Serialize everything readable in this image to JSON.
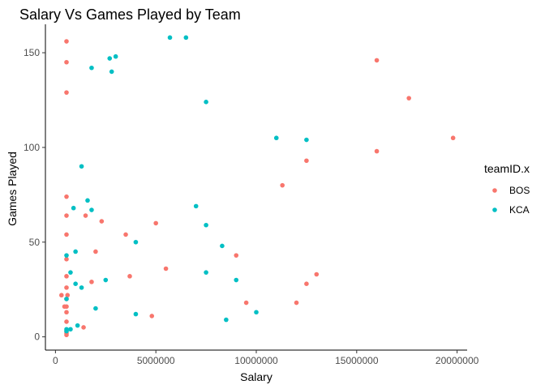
{
  "chart_data": {
    "type": "scatter",
    "title": "Salary Vs Games Played by Team",
    "xlabel": "Salary",
    "ylabel": "Games Played",
    "xlim": [
      -500000,
      20500000
    ],
    "ylim": [
      -7,
      165
    ],
    "x_ticks": [
      0,
      5000000,
      10000000,
      15000000,
      20000000
    ],
    "x_tick_labels": [
      "0",
      "5000000",
      "10000000",
      "15000000",
      "20000000"
    ],
    "y_ticks": [
      0,
      50,
      100,
      150
    ],
    "y_tick_labels": [
      "0",
      "50",
      "100",
      "150"
    ],
    "grid": false,
    "legend": {
      "title": "teamID.x",
      "placement": "right"
    },
    "series": [
      {
        "name": "BOS",
        "color": "#F8766D",
        "points": [
          [
            550000,
            156
          ],
          [
            550000,
            145
          ],
          [
            550000,
            129
          ],
          [
            16000000,
            146
          ],
          [
            17600000,
            126
          ],
          [
            19800000,
            105
          ],
          [
            16000000,
            98
          ],
          [
            12500000,
            93
          ],
          [
            11300000,
            80
          ],
          [
            550000,
            74
          ],
          [
            550000,
            64
          ],
          [
            1500000,
            64
          ],
          [
            2300000,
            61
          ],
          [
            5000000,
            60
          ],
          [
            550000,
            54
          ],
          [
            3500000,
            54
          ],
          [
            2000000,
            45
          ],
          [
            9000000,
            43
          ],
          [
            550000,
            41
          ],
          [
            5500000,
            36
          ],
          [
            550000,
            32
          ],
          [
            3700000,
            32
          ],
          [
            13000000,
            33
          ],
          [
            1800000,
            29
          ],
          [
            12500000,
            28
          ],
          [
            550000,
            26
          ],
          [
            300000,
            22
          ],
          [
            600000,
            22
          ],
          [
            550000,
            20
          ],
          [
            9500000,
            18
          ],
          [
            12000000,
            18
          ],
          [
            450000,
            16
          ],
          [
            550000,
            16
          ],
          [
            550000,
            13
          ],
          [
            4800000,
            11
          ],
          [
            550000,
            8
          ],
          [
            1400000,
            5
          ],
          [
            550000,
            3
          ],
          [
            550000,
            2
          ],
          [
            550000,
            1
          ]
        ]
      },
      {
        "name": "KCA",
        "color": "#00BFC4",
        "points": [
          [
            5700000,
            158
          ],
          [
            6500000,
            158
          ],
          [
            3000000,
            148
          ],
          [
            2700000,
            147
          ],
          [
            1800000,
            142
          ],
          [
            2800000,
            140
          ],
          [
            7500000,
            124
          ],
          [
            11000000,
            105
          ],
          [
            12500000,
            104
          ],
          [
            1300000,
            90
          ],
          [
            1600000,
            72
          ],
          [
            7000000,
            69
          ],
          [
            900000,
            68
          ],
          [
            1800000,
            67
          ],
          [
            7500000,
            59
          ],
          [
            4000000,
            50
          ],
          [
            8300000,
            48
          ],
          [
            1000000,
            45
          ],
          [
            550000,
            43
          ],
          [
            750000,
            34
          ],
          [
            7500000,
            34
          ],
          [
            2500000,
            30
          ],
          [
            9000000,
            30
          ],
          [
            1000000,
            28
          ],
          [
            1300000,
            26
          ],
          [
            550000,
            20
          ],
          [
            2000000,
            15
          ],
          [
            10000000,
            13
          ],
          [
            4000000,
            12
          ],
          [
            8500000,
            9
          ],
          [
            1100000,
            6
          ],
          [
            750000,
            4
          ],
          [
            550000,
            3
          ],
          [
            550000,
            4
          ]
        ]
      }
    ]
  }
}
